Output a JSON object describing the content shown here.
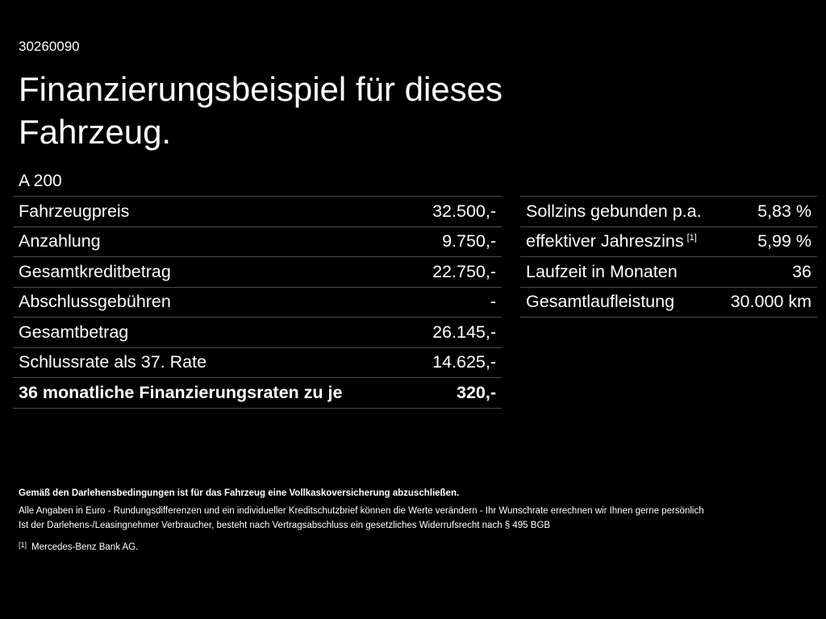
{
  "header": {
    "id": "30260090",
    "title": "Finanzierungsbeispiel für dieses Fahrzeug.",
    "model": "A 200"
  },
  "left_table": {
    "rows": [
      [
        "Fahrzeugpreis",
        "32.500,-"
      ],
      [
        "Anzahlung",
        "9.750,-"
      ],
      [
        "Gesamtkreditbetrag",
        "22.750,-"
      ],
      [
        "Abschlussgebühren",
        "-"
      ],
      [
        "Gesamtbetrag",
        "26.145,-"
      ],
      [
        "Schlussrate als 37. Rate",
        "14.625,-"
      ],
      [
        "36 monatliche Finanzierungsraten zu je",
        "320,-"
      ]
    ]
  },
  "right_table": {
    "rows": [
      {
        "label": "Sollzins gebunden p.a.",
        "value": "5,83 %"
      },
      {
        "label": "effektiver Jahreszins",
        "footnote": "[1]",
        "value": "5,99 %"
      },
      {
        "label": "Laufzeit in Monaten",
        "value": "36"
      },
      {
        "label": "Gesamtlaufleistung",
        "value": "30.000 km"
      }
    ]
  },
  "notes": [
    "Gemäß den Darlehensbedingungen ist für das Fahrzeug eine Vollkaskoversicherung abzuschließen.",
    "Alle Angaben in Euro - Rundungsdifferenzen und ein individueller Kreditschutzbrief können die Werte verändern - Ihr Wunschrate errechnen wir Ihnen gerne persönlich",
    "Ist der Darlehens-/Leasingnehmer Verbraucher, besteht nach Vertragsabschluss ein gesetzliches Widerrufsrecht nach § 495 BGB"
  ],
  "footnote": {
    "marker": "[1]",
    "text": "Mercedes-Benz Bank AG."
  }
}
